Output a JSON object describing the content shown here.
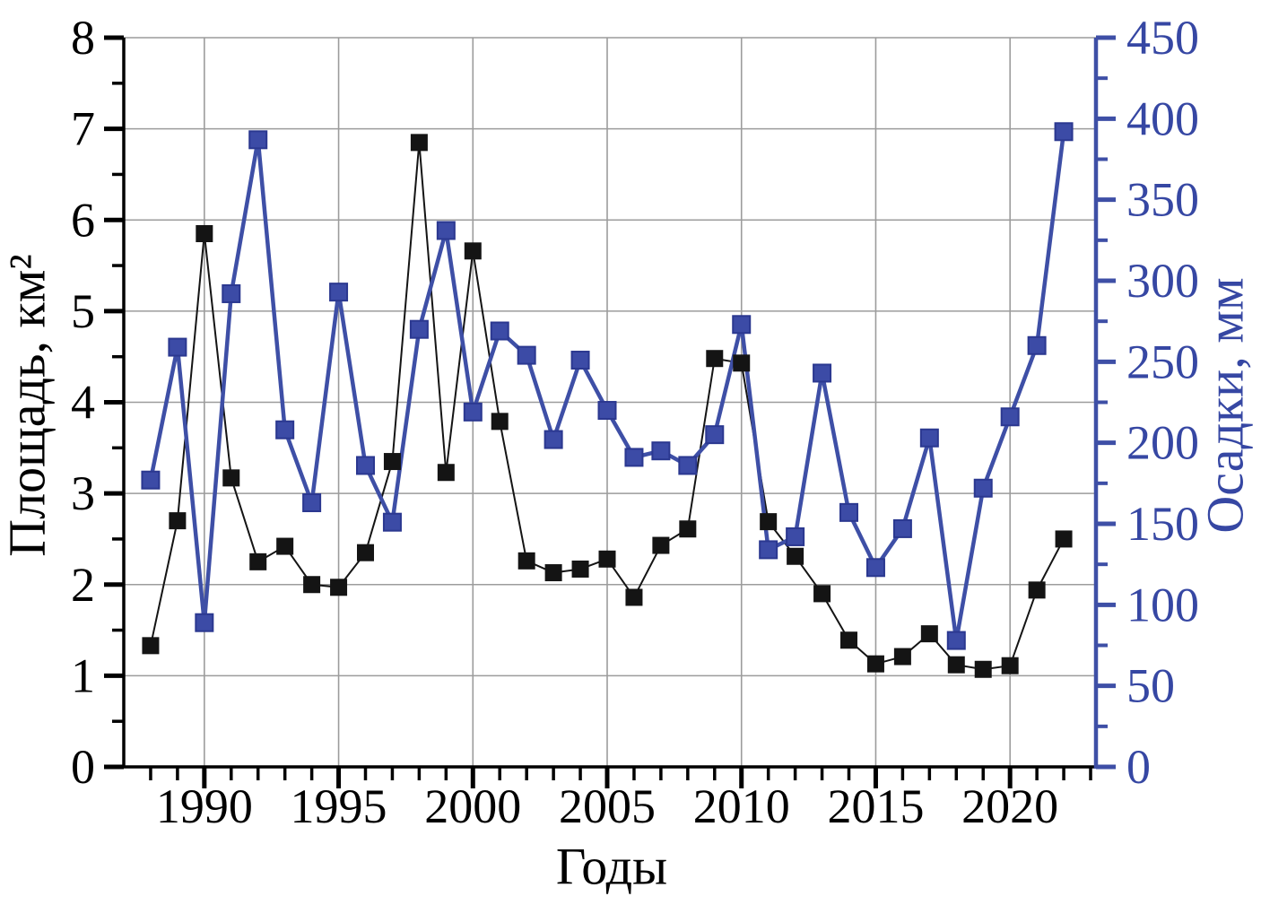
{
  "chart_data": {
    "type": "line",
    "title": "",
    "xlabel": "Годы",
    "ylabel_left": "Площадь, км²",
    "ylabel_right": "Осадки, мм",
    "grid": true,
    "legend": "none",
    "x": [
      1988,
      1989,
      1990,
      1991,
      1992,
      1993,
      1994,
      1995,
      1996,
      1997,
      1998,
      1999,
      2000,
      2001,
      2002,
      2003,
      2004,
      2005,
      2006,
      2007,
      2008,
      2009,
      2010,
      2011,
      2012,
      2013,
      2014,
      2015,
      2016,
      2017,
      2018,
      2019,
      2020,
      2021,
      2022
    ],
    "series": [
      {
        "name": "Площадь, км²",
        "axis": "left",
        "marker": "square",
        "color": "#141414",
        "marker_fill": "#141414",
        "marker_stroke": "#141414",
        "marker_size": 17,
        "line_width": 2,
        "values": [
          1.33,
          2.7,
          5.85,
          3.17,
          2.25,
          2.42,
          2.0,
          1.97,
          2.35,
          3.35,
          6.85,
          3.23,
          5.66,
          3.79,
          2.26,
          2.13,
          2.17,
          2.28,
          1.86,
          2.43,
          2.61,
          4.48,
          4.43,
          2.69,
          2.31,
          1.9,
          1.39,
          1.13,
          1.21,
          1.46,
          1.12,
          1.07,
          1.11,
          1.94,
          2.5
        ]
      },
      {
        "name": "Осадки, мм",
        "axis": "right",
        "marker": "square",
        "color": "#3E4FA6",
        "marker_fill": "#3C4BA6",
        "marker_stroke": "#2B3890",
        "marker_size": 19,
        "line_width": 4.5,
        "values": [
          177,
          259,
          89,
          292,
          387,
          208,
          163,
          293,
          186,
          151,
          270,
          331,
          219,
          269,
          254,
          202,
          251,
          220,
          191,
          195,
          186,
          205,
          273,
          134,
          142,
          243,
          157,
          123,
          147,
          203,
          78,
          172,
          216,
          260,
          392
        ]
      }
    ],
    "x_axis": {
      "min": 1987,
      "max": 2023.2,
      "tick_start": 1988,
      "tick_end": 2023,
      "minor_step": 1,
      "major_every": 5,
      "major_tick_years": [
        1990,
        1995,
        2000,
        2005,
        2010,
        2015,
        2020
      ],
      "labels": [
        "1990",
        "1995",
        "2000",
        "2005",
        "2010",
        "2015",
        "2020"
      ],
      "color": "#000000"
    },
    "left_axis": {
      "min": 0,
      "max": 8,
      "major_step": 1,
      "minor_step": 0.5,
      "labels": [
        "0",
        "1",
        "2",
        "3",
        "4",
        "5",
        "6",
        "7",
        "8"
      ],
      "color": "#000000"
    },
    "right_axis": {
      "min": 0,
      "max": 450,
      "major_step": 50,
      "minor_step": 25,
      "labels": [
        "0",
        "50",
        "100",
        "150",
        "200",
        "250",
        "300",
        "350",
        "400",
        "450"
      ],
      "color": "#3647A3",
      "line_color": "#3E4FA6"
    },
    "grid_color": "#9C9C9C"
  }
}
